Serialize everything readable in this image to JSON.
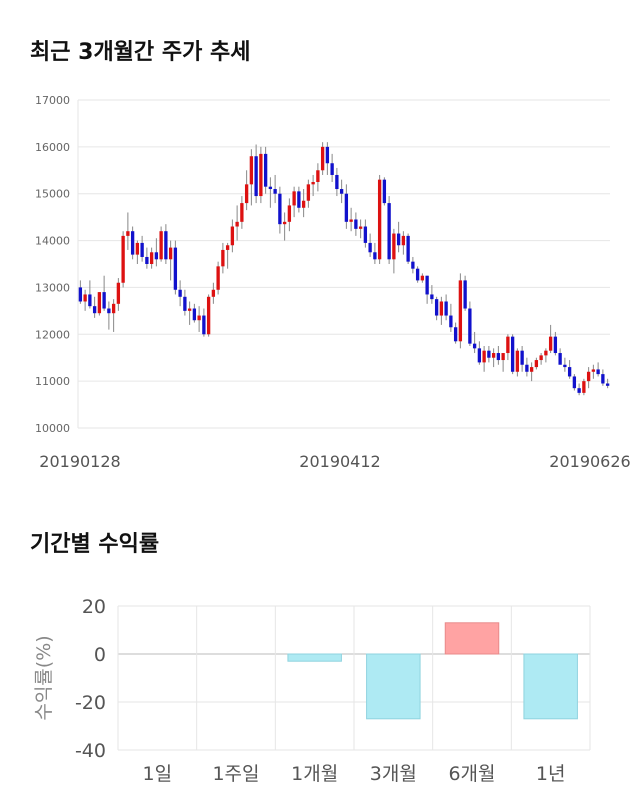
{
  "price_section": {
    "title": "최근 3개월간 주가 추세"
  },
  "returns_section": {
    "title": "기간별 수익률"
  },
  "colors": {
    "up": "#dd1111",
    "down": "#1111cc",
    "wick": "#888888",
    "positive_bar": "#ffa3a3",
    "negative_bar": "#aeeaf3",
    "grid": "#e6e6e6",
    "axis_text": "#666666"
  },
  "chart_data": [
    {
      "type": "candlestick",
      "title": "최근 3개월간 주가 추세",
      "ylim": [
        10000,
        17000
      ],
      "y_ticks": [
        "17000",
        "16000",
        "15000",
        "14000",
        "13000",
        "12000",
        "11000",
        "10000"
      ],
      "y_tick_values": [
        17000,
        16000,
        15000,
        14000,
        13000,
        12000,
        11000,
        10000
      ],
      "x_tick_labels": [
        "20190128",
        "20190412",
        "20190626"
      ],
      "grid": true,
      "ohlc": [
        [
          13000,
          13150,
          12650,
          12700
        ],
        [
          12700,
          12950,
          12500,
          12850
        ],
        [
          12850,
          13150,
          12550,
          12600
        ],
        [
          12600,
          12800,
          12350,
          12450
        ],
        [
          12450,
          12900,
          12400,
          12900
        ],
        [
          12900,
          13250,
          12500,
          12550
        ],
        [
          12550,
          12700,
          12100,
          12450
        ],
        [
          12450,
          12750,
          12050,
          12650
        ],
        [
          12650,
          13200,
          12500,
          13100
        ],
        [
          13100,
          14200,
          13000,
          14100
        ],
        [
          14100,
          14600,
          13800,
          14200
        ],
        [
          14200,
          14300,
          13600,
          13700
        ],
        [
          13700,
          14000,
          13500,
          13950
        ],
        [
          13950,
          14100,
          13550,
          13650
        ],
        [
          13650,
          13850,
          13400,
          13500
        ],
        [
          13500,
          13850,
          13400,
          13750
        ],
        [
          13750,
          14050,
          13450,
          13600
        ],
        [
          13600,
          14300,
          13550,
          14200
        ],
        [
          14200,
          14350,
          13500,
          13600
        ],
        [
          13600,
          14000,
          13150,
          13850
        ],
        [
          13850,
          14000,
          12850,
          12950
        ],
        [
          12950,
          13150,
          12600,
          12800
        ],
        [
          12800,
          12950,
          12400,
          12500
        ],
        [
          12500,
          12700,
          12200,
          12550
        ],
        [
          12550,
          12650,
          12250,
          12300
        ],
        [
          12300,
          12600,
          12050,
          12400
        ],
        [
          12400,
          12550,
          11950,
          12000
        ],
        [
          12000,
          12850,
          11950,
          12800
        ],
        [
          12800,
          13100,
          12650,
          12950
        ],
        [
          12950,
          13550,
          12850,
          13450
        ],
        [
          13450,
          13950,
          13300,
          13800
        ],
        [
          13800,
          13950,
          13400,
          13900
        ],
        [
          13900,
          14450,
          13750,
          14300
        ],
        [
          14300,
          14750,
          14000,
          14400
        ],
        [
          14400,
          14950,
          14250,
          14800
        ],
        [
          14800,
          15500,
          14650,
          15200
        ],
        [
          15200,
          15950,
          14750,
          15800
        ],
        [
          15800,
          16050,
          14800,
          14950
        ],
        [
          14950,
          16000,
          14800,
          15850
        ],
        [
          15850,
          16000,
          15000,
          15150
        ],
        [
          15150,
          15350,
          14700,
          15100
        ],
        [
          15100,
          15400,
          14800,
          15000
        ],
        [
          15000,
          15150,
          14150,
          14350
        ],
        [
          14350,
          14600,
          14000,
          14400
        ],
        [
          14400,
          14900,
          14200,
          14750
        ],
        [
          14750,
          15150,
          14500,
          15050
        ],
        [
          15050,
          15150,
          14600,
          14700
        ],
        [
          14700,
          15100,
          14500,
          14850
        ],
        [
          14850,
          15300,
          14700,
          15200
        ],
        [
          15200,
          15400,
          14950,
          15250
        ],
        [
          15250,
          15650,
          15050,
          15500
        ],
        [
          15500,
          16100,
          15400,
          16000
        ],
        [
          16000,
          16100,
          15400,
          15650
        ],
        [
          15650,
          15850,
          15250,
          15400
        ],
        [
          15400,
          15550,
          14950,
          15100
        ],
        [
          15100,
          15300,
          14800,
          15000
        ],
        [
          15000,
          15200,
          14250,
          14400
        ],
        [
          14400,
          14700,
          14200,
          14450
        ],
        [
          14450,
          14600,
          14100,
          14250
        ],
        [
          14250,
          14450,
          14050,
          14300
        ],
        [
          14300,
          14450,
          13850,
          13950
        ],
        [
          13950,
          14150,
          13650,
          13750
        ],
        [
          13750,
          13950,
          13500,
          13600
        ],
        [
          13600,
          15400,
          13500,
          15300
        ],
        [
          15300,
          15350,
          14750,
          14800
        ],
        [
          14800,
          14950,
          13500,
          13600
        ],
        [
          13600,
          14250,
          13300,
          14150
        ],
        [
          14150,
          14400,
          13750,
          13900
        ],
        [
          13900,
          14200,
          13700,
          14100
        ],
        [
          14100,
          14150,
          13500,
          13550
        ],
        [
          13550,
          13650,
          13300,
          13400
        ],
        [
          13400,
          13450,
          13100,
          13150
        ],
        [
          13150,
          13300,
          13100,
          13250
        ],
        [
          13250,
          13250,
          12650,
          12850
        ],
        [
          12850,
          13050,
          12650,
          12750
        ],
        [
          12750,
          12800,
          12300,
          12400
        ],
        [
          12400,
          12800,
          12200,
          12700
        ],
        [
          12700,
          12850,
          12300,
          12400
        ],
        [
          12400,
          12650,
          12050,
          12150
        ],
        [
          12150,
          12250,
          11800,
          11850
        ],
        [
          11850,
          13300,
          11700,
          13150
        ],
        [
          13150,
          13250,
          12500,
          12550
        ],
        [
          12550,
          12700,
          11750,
          11800
        ],
        [
          11800,
          12050,
          11600,
          11700
        ],
        [
          11700,
          11850,
          11350,
          11400
        ],
        [
          11400,
          11750,
          11200,
          11650
        ],
        [
          11650,
          11750,
          11400,
          11500
        ],
        [
          11500,
          11700,
          11300,
          11600
        ],
        [
          11600,
          11750,
          11350,
          11450
        ],
        [
          11450,
          11600,
          11200,
          11600
        ],
        [
          11600,
          12000,
          11450,
          11950
        ],
        [
          11950,
          12000,
          11150,
          11200
        ],
        [
          11200,
          11700,
          11100,
          11650
        ],
        [
          11650,
          11750,
          11200,
          11350
        ],
        [
          11350,
          11500,
          11100,
          11200
        ],
        [
          11200,
          11400,
          11000,
          11300
        ],
        [
          11300,
          11500,
          11250,
          11450
        ],
        [
          11450,
          11600,
          11350,
          11550
        ],
        [
          11550,
          11700,
          11400,
          11650
        ],
        [
          11650,
          12200,
          11600,
          11950
        ],
        [
          11950,
          12050,
          11550,
          11600
        ],
        [
          11600,
          11700,
          11400,
          11350
        ],
        [
          11350,
          11500,
          11200,
          11300
        ],
        [
          11300,
          11450,
          11050,
          11100
        ],
        [
          11100,
          11150,
          10800,
          10850
        ],
        [
          10850,
          10950,
          10700,
          10750
        ],
        [
          10750,
          11050,
          10700,
          11000
        ],
        [
          11000,
          11300,
          10850,
          11200
        ],
        [
          11200,
          11350,
          11050,
          11250
        ],
        [
          11250,
          11400,
          11100,
          11150
        ],
        [
          11150,
          11250,
          10900,
          10950
        ],
        [
          10950,
          11050,
          10850,
          10900
        ]
      ]
    },
    {
      "type": "bar",
      "categories": [
        "1일",
        "1주일",
        "1개월",
        "3개월",
        "6개월",
        "1년"
      ],
      "values": [
        0,
        0,
        -3,
        -27,
        13,
        -27
      ],
      "ylabel": "수익률(%)",
      "ylim": [
        -40,
        20
      ],
      "y_ticks": [
        "20",
        "0",
        "-20",
        "-40"
      ],
      "y_tick_values": [
        20,
        0,
        -20,
        -40
      ],
      "grid": true
    }
  ]
}
